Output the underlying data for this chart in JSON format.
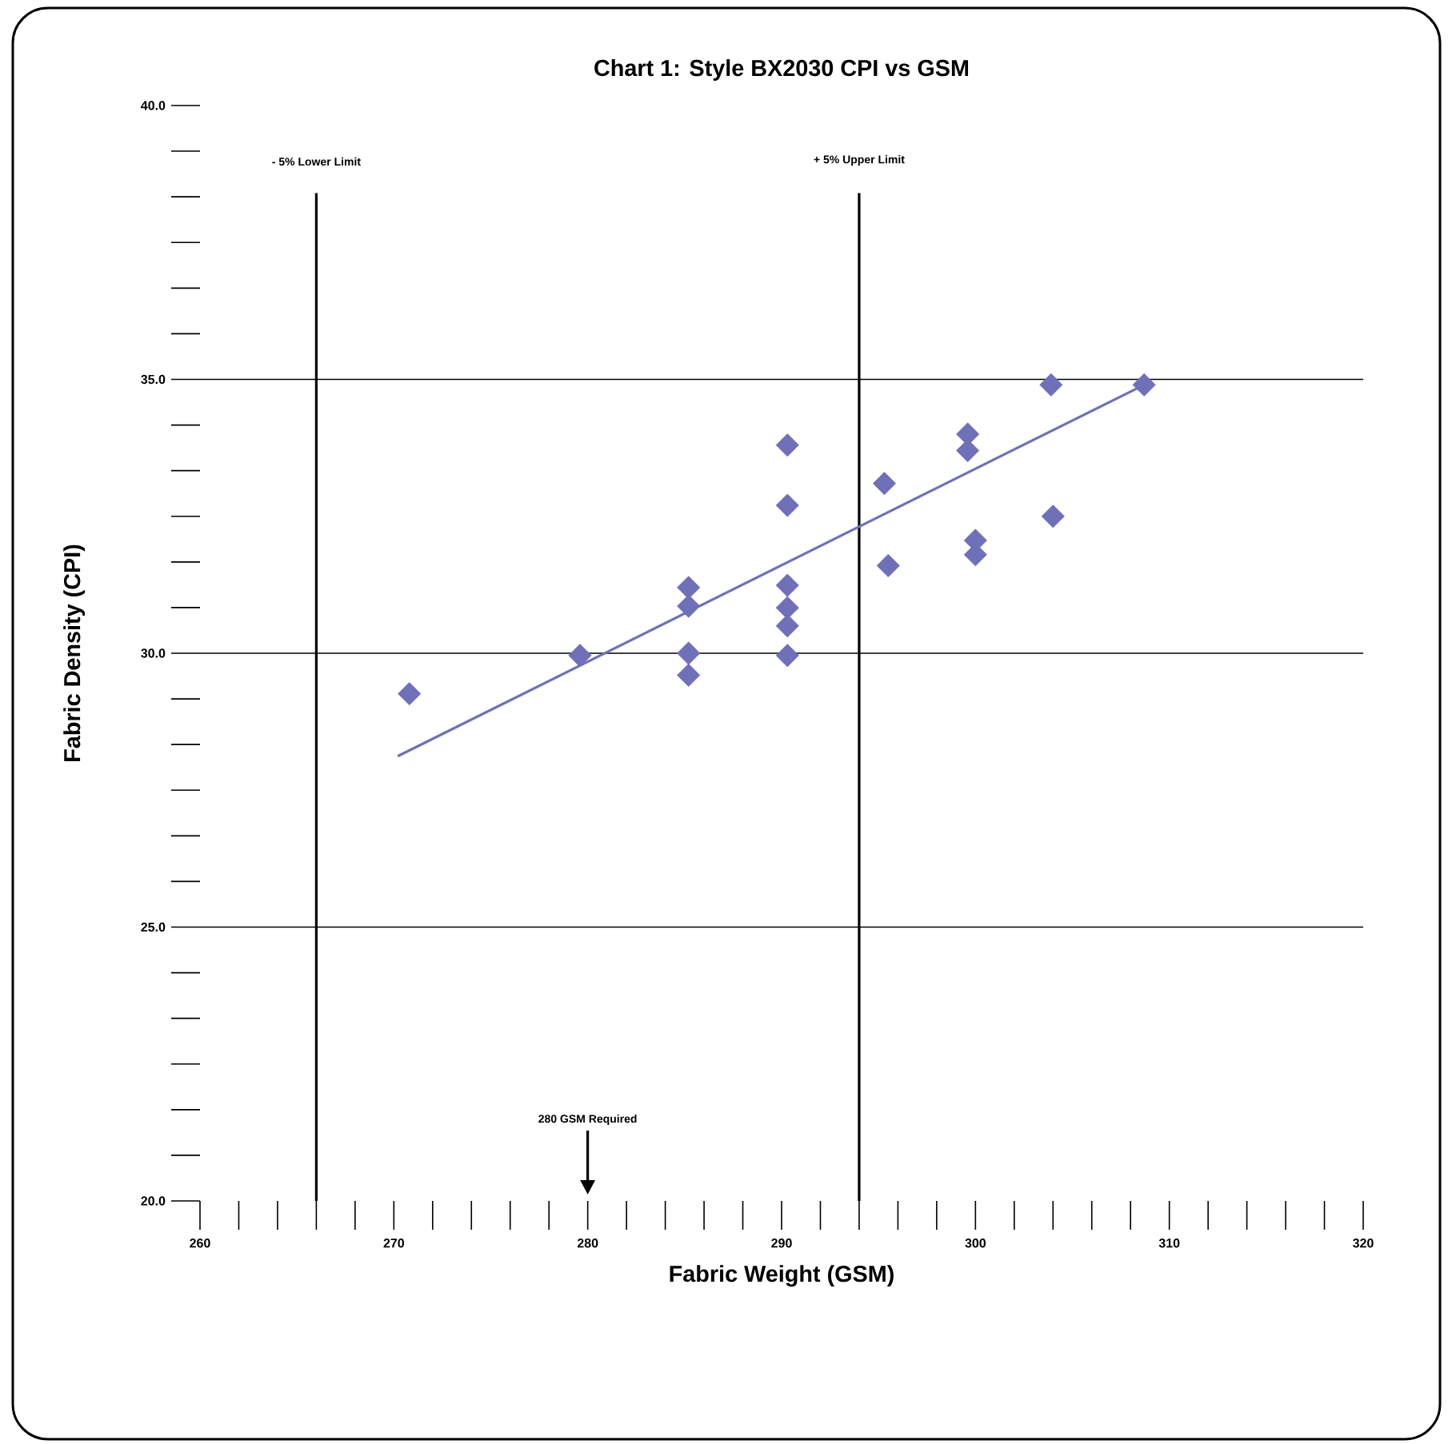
{
  "chart_data": {
    "type": "scatter",
    "title": "Chart 1: Style BX2030 CPI vs GSM",
    "xlabel": "Fabric Weight (GSM)",
    "ylabel": "Fabric Density (CPI)",
    "xlim": [
      260,
      320
    ],
    "xticks": [
      260,
      270,
      280,
      290,
      300,
      310,
      320
    ],
    "ylim": [
      20,
      40
    ],
    "yticks": [
      {
        "value": 20,
        "label": "20.0"
      },
      {
        "value": 25,
        "label": "25.0"
      },
      {
        "value": 30,
        "label": "30.0"
      },
      {
        "value": 35,
        "label": "35.0"
      },
      {
        "value": 40,
        "label": "40.0"
      }
    ],
    "grid": "y",
    "marker": "diamond",
    "series": [
      {
        "color": "#7070b8",
        "x": [
          270.8,
          279.6,
          285.2,
          285.2,
          285.2,
          285.2,
          290.3,
          290.3,
          290.3,
          290.3,
          290.3,
          290.3,
          295.3,
          295.5,
          299.6,
          299.6,
          300.0,
          300.0,
          303.9,
          304.0,
          308.7
        ],
        "values": [
          29.26,
          29.96,
          31.2,
          30.86,
          30.0,
          29.6,
          33.8,
          32.7,
          31.24,
          30.83,
          30.5,
          29.96,
          33.1,
          31.6,
          34.0,
          33.7,
          32.06,
          31.8,
          34.9,
          32.5,
          34.9
        ]
      },
      {
        "type": "line",
        "color": "#7070b8",
        "marker": "none",
        "x": [
          270.2,
          308.7
        ],
        "values": [
          28.12,
          34.9
        ]
      }
    ],
    "ref_lines": [
      {
        "axis": "x",
        "value": 266,
        "label": "- 5% Lower Limit",
        "color": "#000000"
      },
      {
        "axis": "x",
        "value": 294,
        "label": "+ 5% Upper Limit",
        "color": "#000000"
      }
    ],
    "annotations": [
      "280 GSM Required"
    ]
  }
}
